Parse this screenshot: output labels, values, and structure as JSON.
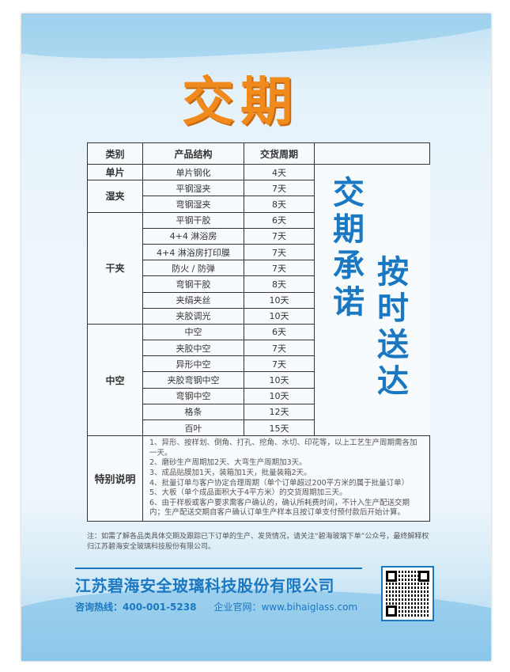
{
  "title": "交期",
  "table": {
    "headers": [
      "类别",
      "产品结构",
      "交货周期"
    ],
    "groups": [
      {
        "category": "单片",
        "rows": [
          [
            "单片钢化",
            "4天"
          ]
        ]
      },
      {
        "category": "湿夹",
        "rows": [
          [
            "平钢湿夹",
            "7天"
          ],
          [
            "弯钢湿夹",
            "8天"
          ]
        ]
      },
      {
        "category": "干夹",
        "rows": [
          [
            "平钢干胶",
            "6天"
          ],
          [
            "4+4 淋浴房",
            "7天"
          ],
          [
            "4+4 淋浴房打印膜",
            "7天"
          ],
          [
            "防火 / 防弹",
            "7天"
          ],
          [
            "弯钢干胶",
            "8天"
          ],
          [
            "夹绢夹丝",
            "10天"
          ],
          [
            "夹胶调光",
            "10天"
          ]
        ]
      },
      {
        "category": "中空",
        "rows": [
          [
            "中空",
            "6天"
          ],
          [
            "夹胶中空",
            "7天"
          ],
          [
            "异形中空",
            "7天"
          ],
          [
            "夹胶弯钢中空",
            "10天"
          ],
          [
            "弯钢中空",
            "10天"
          ],
          [
            "格条",
            "12天"
          ],
          [
            "百叶",
            "15天"
          ]
        ]
      }
    ],
    "slogan_1": "交期承诺",
    "slogan_2": "按时送达",
    "notes_label": "特别说明",
    "notes": [
      "1、异形、按样划、倒角、打孔、挖角、水切、印花等，以上工艺生产周期需各加一天。",
      "2、磨砂生产周期加2天、大弯生产周期加3天。",
      "3、成品贴膜加1天，装箱加1天，批量装箱2天。",
      "4、批量订单与客户协定合理周期（单个订单超过200平方米的属于批量订单）",
      "5、大板（单个成品面积大于4平方米）的交货周期加三天。",
      "6、由于样板或客户要求需客户确认的，确认所耗费时间，不计入生产配送交期内；生产配送交期自客户确认订单生产样本且按订单支付预付款后开始计算。"
    ]
  },
  "footnote": "注：如需了解各品类具体交期及跟踪已下订单的生产、发货情况，请关注“碧海玻璃下单”公众号，最终解释权归江苏碧海安全玻璃科技股份有限公司。",
  "company": "江苏碧海安全玻璃科技股份有限公司",
  "hotline": "咨询热线：400-001-5238",
  "website": "企业官网：www.bihaiglass.com",
  "colors": {
    "title": "#f08a1c",
    "brand": "#1a78c2"
  }
}
